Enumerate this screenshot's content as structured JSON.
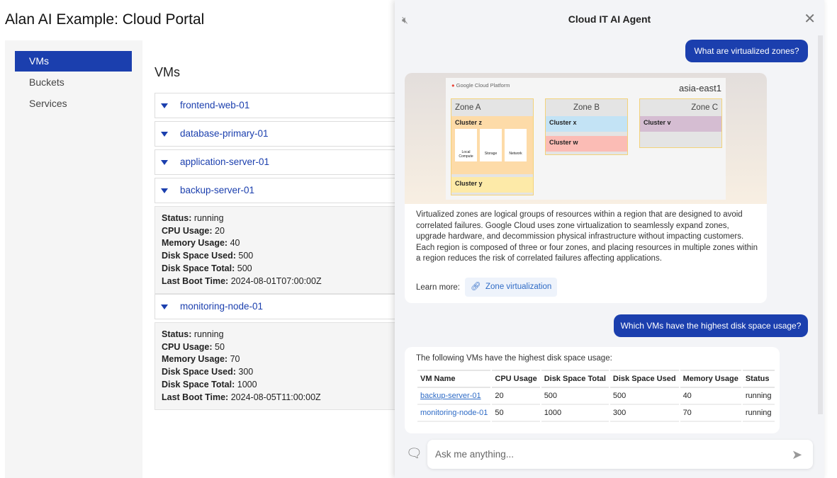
{
  "app": {
    "title": "Alan AI Example: Cloud Portal"
  },
  "sidebar": {
    "items": [
      {
        "label": "VMs",
        "active": true
      },
      {
        "label": "Buckets"
      },
      {
        "label": "Services"
      }
    ]
  },
  "main": {
    "heading": "VMs",
    "vms": [
      {
        "name": "frontend-web-01"
      },
      {
        "name": "database-primary-01"
      },
      {
        "name": "application-server-01"
      },
      {
        "name": "backup-server-01",
        "details": {
          "status": "running",
          "cpu": "20",
          "memory": "40",
          "disk_used": "500",
          "disk_total": "500",
          "boot": "2024-08-01T07:00:00Z"
        }
      },
      {
        "name": "monitoring-node-01",
        "details": {
          "status": "running",
          "cpu": "50",
          "memory": "70",
          "disk_used": "300",
          "disk_total": "1000",
          "boot": "2024-08-05T11:00:00Z"
        }
      }
    ],
    "labels": {
      "status": "Status:",
      "cpu": "CPU Usage:",
      "memory": "Memory Usage:",
      "disk_used": "Disk Space Used:",
      "disk_total": "Disk Space Total:",
      "boot": "Last Boot Time:"
    }
  },
  "chat": {
    "title": "Cloud IT AI Agent",
    "q1": "What are virtualized zones?",
    "image": {
      "brand": "Google Cloud Platform",
      "region": "asia-east1",
      "zones": [
        "Zone A",
        "Zone B",
        "Zone C"
      ],
      "clusters": {
        "z": "Cluster z",
        "y": "Cluster y",
        "x": "Cluster x",
        "w": "Cluster w",
        "v": "Cluster v"
      },
      "resources": [
        "Local Compute",
        "Storage",
        "Network"
      ]
    },
    "a1": "Virtualized zones are logical groups of resources within a region that are designed to avoid correlated failures. Google Cloud uses zone virtualization to seamlessly expand zones, upgrade hardware, and decommission physical infrastructure without impacting customers. Each region is composed of three or four zones, and placing resources in multiple zones within a region reduces the risk of correlated failures affecting applications.",
    "learn_more": "Learn more:",
    "link": "Zone virtualization",
    "q2": "Which VMs have the highest disk space usage?",
    "a2_intro": "The following VMs have the highest disk space usage:",
    "table": {
      "headers": [
        "VM Name",
        "CPU Usage",
        "Disk Space Total",
        "Disk Space Used",
        "Memory Usage",
        "Status"
      ],
      "rows": [
        [
          "backup-server-01",
          "20",
          "500",
          "500",
          "40",
          "running"
        ],
        [
          "monitoring-node-01",
          "50",
          "1000",
          "300",
          "70",
          "running"
        ]
      ]
    },
    "input_placeholder": "Ask me anything..."
  },
  "colors": {
    "accent": "#1b3fae",
    "link": "#2e6bc6"
  }
}
